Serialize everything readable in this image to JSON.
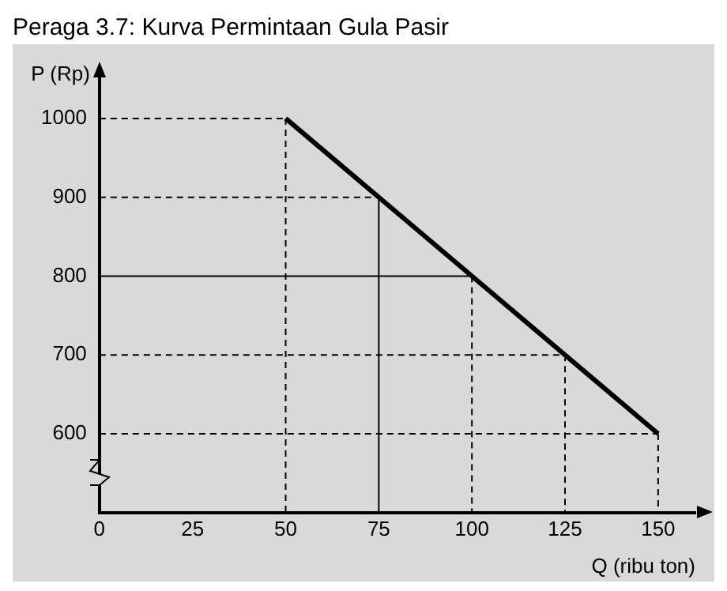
{
  "chart_data": {
    "type": "line",
    "title": "Peraga 3.7: Kurva Permintaan Gula Pasir",
    "xlabel": "Q (ribu ton)",
    "ylabel": "P (Rp)",
    "xlim": [
      0,
      160
    ],
    "ylim": [
      500,
      1050
    ],
    "xticks": [
      0,
      25,
      50,
      75,
      100,
      125,
      150
    ],
    "yticks": [
      600,
      700,
      800,
      900,
      1000
    ],
    "grid": false,
    "marker": "none",
    "series": [
      {
        "x": [
          50,
          150
        ],
        "values": [
          1000,
          600
        ],
        "color": "#000000",
        "line_style": "solid"
      },
      {
        "x": [
          0,
          50
        ],
        "values": [
          1000,
          1000
        ],
        "color": "#000000",
        "line_style": "dashed"
      },
      {
        "x": [
          50,
          50
        ],
        "values": [
          1000,
          500
        ],
        "color": "#000000",
        "line_style": "dashed"
      },
      {
        "x": [
          0,
          75
        ],
        "values": [
          900,
          900
        ],
        "color": "#000000",
        "line_style": "dashed"
      },
      {
        "x": [
          75,
          75
        ],
        "values": [
          900,
          500
        ],
        "color": "#000000",
        "line_style": "solid"
      },
      {
        "x": [
          0,
          100
        ],
        "values": [
          800,
          800
        ],
        "color": "#000000",
        "line_style": "solid"
      },
      {
        "x": [
          100,
          100
        ],
        "values": [
          800,
          500
        ],
        "color": "#000000",
        "line_style": "dashed"
      },
      {
        "x": [
          0,
          125
        ],
        "values": [
          700,
          700
        ],
        "color": "#000000",
        "line_style": "dashed"
      },
      {
        "x": [
          125,
          125
        ],
        "values": [
          700,
          500
        ],
        "color": "#000000",
        "line_style": "dashed"
      },
      {
        "x": [
          0,
          150
        ],
        "values": [
          600,
          600
        ],
        "color": "#000000",
        "line_style": "dashed"
      },
      {
        "x": [
          150,
          150
        ],
        "values": [
          600,
          500
        ],
        "color": "#000000",
        "line_style": "dashed"
      }
    ]
  }
}
